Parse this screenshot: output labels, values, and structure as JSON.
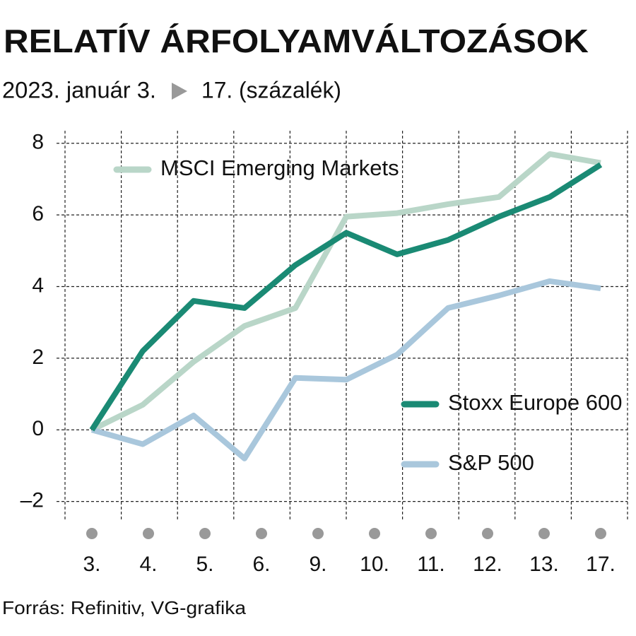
{
  "chart_data": {
    "type": "line",
    "title": "RELATÍV ÁRFOLYAMVÁLTOZÁSOK",
    "subtitle": [
      "2023. január 3.",
      "17. (százalék)"
    ],
    "source": "Forrás: Refinitiv, VG-grafika",
    "categories": [
      "3.",
      "4.",
      "5.",
      "6.",
      "9.",
      "10.",
      "11.",
      "12.",
      "13.",
      null,
      "17."
    ],
    "series": [
      {
        "name": "MSCI Emerging Markets",
        "color": "#b9d6c8",
        "values": [
          0,
          0.7,
          1.9,
          2.9,
          3.4,
          5.95,
          6.05,
          6.3,
          6.5,
          7.7,
          7.45
        ]
      },
      {
        "name": "S&P 500",
        "color": "#a9c7dc",
        "values": [
          0,
          -0.4,
          0.4,
          -0.8,
          1.45,
          1.4,
          2.1,
          3.4,
          3.75,
          4.15,
          3.95
        ]
      },
      {
        "name": "Stoxx Europe 600",
        "color": "#1a8a74",
        "values": [
          0,
          2.2,
          3.6,
          3.4,
          4.6,
          5.5,
          4.9,
          5.3,
          5.95,
          6.5,
          7.4
        ]
      }
    ],
    "ylim": [
      -2.5,
      8.35
    ],
    "yticks": [
      {
        "value": -2,
        "label": "–2"
      },
      0,
      2,
      4,
      6,
      8
    ],
    "grid": true
  }
}
